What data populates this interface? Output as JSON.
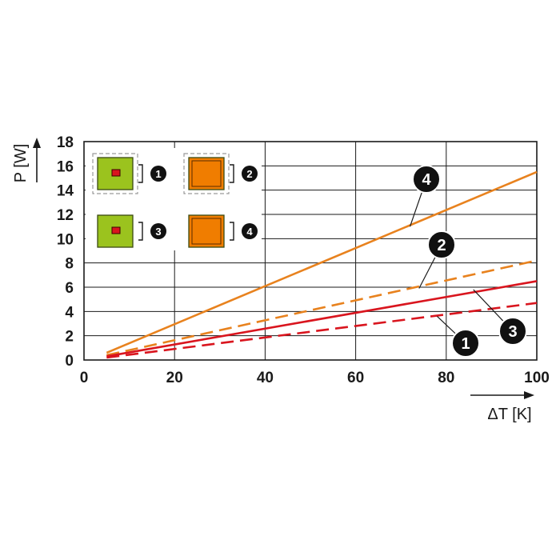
{
  "chart_data": {
    "type": "line",
    "xlabel": "ΔT [K]",
    "ylabel": "P [W]",
    "xlim": [
      0,
      100
    ],
    "ylim": [
      0,
      18
    ],
    "x_ticks": [
      "0",
      "20",
      "40",
      "60",
      "80",
      "100"
    ],
    "y_ticks": [
      "0",
      "2",
      "4",
      "6",
      "8",
      "10",
      "12",
      "14",
      "16",
      "18"
    ],
    "grid": true,
    "legend_position": "top-left",
    "series": [
      {
        "id": "1",
        "label": "1",
        "style": "dashed",
        "color": "#d9151e",
        "x": [
          5,
          100
        ],
        "y": [
          0.2,
          4.7
        ]
      },
      {
        "id": "2",
        "label": "2",
        "style": "dashed",
        "color": "#e8821e",
        "x": [
          5,
          100
        ],
        "y": [
          0.4,
          8.2
        ]
      },
      {
        "id": "3",
        "label": "3",
        "style": "solid",
        "color": "#d9151e",
        "x": [
          5,
          100
        ],
        "y": [
          0.3,
          6.5
        ]
      },
      {
        "id": "4",
        "label": "4",
        "style": "solid",
        "color": "#e8821e",
        "x": [
          5,
          100
        ],
        "y": [
          0.6,
          15.5
        ]
      }
    ],
    "callouts": [
      {
        "label": "4",
        "x": 72,
        "y": 11
      },
      {
        "label": "2",
        "x": 74,
        "y": 5.9
      },
      {
        "label": "3",
        "x": 86,
        "y": 5.8
      },
      {
        "label": "1",
        "x": 78,
        "y": 3.6
      }
    ],
    "legend": [
      {
        "number": "1",
        "body_color": "#9bc31e",
        "core_color": "#d9151e",
        "dashed_frame": true
      },
      {
        "number": "2",
        "body_color": "#f07d00",
        "core_color": "#f07d00",
        "dashed_frame": true
      },
      {
        "number": "3",
        "body_color": "#9bc31e",
        "core_color": "#d9151e",
        "dashed_frame": false
      },
      {
        "number": "4",
        "body_color": "#f07d00",
        "core_color": "#f07d00",
        "dashed_frame": false
      }
    ]
  }
}
